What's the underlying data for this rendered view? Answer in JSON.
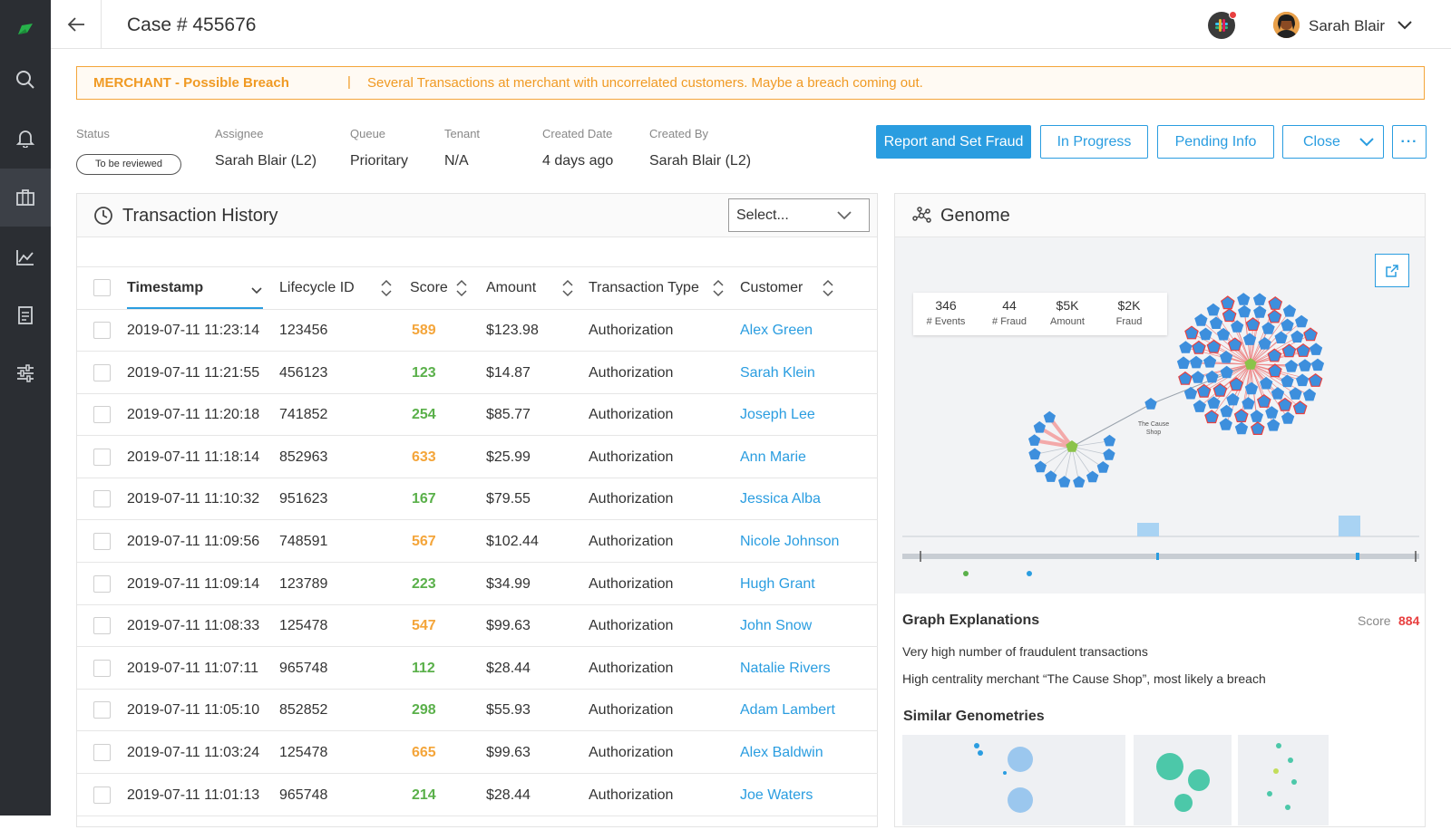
{
  "header": {
    "case_title": "Case # 455676",
    "user_name": "Sarah Blair"
  },
  "alert": {
    "title": "MERCHANT - Possible Breach",
    "separator": "|",
    "message": "Several Transactions at merchant with uncorrelated customers. Maybe a breach coming out."
  },
  "meta": {
    "status_label": "Status",
    "status_value": "To be reviewed",
    "assignee_label": "Assignee",
    "assignee_value": "Sarah Blair (L2)",
    "queue_label": "Queue",
    "queue_value": "Prioritary",
    "tenant_label": "Tenant",
    "tenant_value": "N/A",
    "created_date_label": "Created Date",
    "created_date_value": "4 days ago",
    "created_by_label": "Created By",
    "created_by_value": "Sarah Blair (L2)"
  },
  "actions": {
    "report": "Report and Set Fraud",
    "in_progress": "In Progress",
    "pending": "Pending Info",
    "close": "Close",
    "more": "···"
  },
  "transactions": {
    "title": "Transaction History",
    "select_placeholder": "Select...",
    "columns": [
      "Timestamp",
      "Lifecycle ID",
      "Score",
      "Amount",
      "Transaction Type",
      "Customer"
    ],
    "rows": [
      {
        "ts": "2019-07-11 11:23:14",
        "id": "123456",
        "score": "589",
        "level": "o",
        "amount": "$123.98",
        "type": "Authorization",
        "customer": "Alex Green"
      },
      {
        "ts": "2019-07-11 11:21:55",
        "id": "456123",
        "score": "123",
        "level": "g",
        "amount": "$14.87",
        "type": "Authorization",
        "customer": "Sarah Klein"
      },
      {
        "ts": "2019-07-11 11:20:18",
        "id": "741852",
        "score": "254",
        "level": "g",
        "amount": "$85.77",
        "type": "Authorization",
        "customer": "Joseph Lee"
      },
      {
        "ts": "2019-07-11 11:18:14",
        "id": "852963",
        "score": "633",
        "level": "o",
        "amount": "$25.99",
        "type": "Authorization",
        "customer": "Ann Marie"
      },
      {
        "ts": "2019-07-11 11:10:32",
        "id": "951623",
        "score": "167",
        "level": "g",
        "amount": "$79.55",
        "type": "Authorization",
        "customer": "Jessica Alba"
      },
      {
        "ts": "2019-07-11 11:09:56",
        "id": "748591",
        "score": "567",
        "level": "o",
        "amount": "$102.44",
        "type": "Authorization",
        "customer": "Nicole Johnson"
      },
      {
        "ts": "2019-07-11 11:09:14",
        "id": "123789",
        "score": "223",
        "level": "g",
        "amount": "$34.99",
        "type": "Authorization",
        "customer": "Hugh Grant"
      },
      {
        "ts": "2019-07-11 11:08:33",
        "id": "125478",
        "score": "547",
        "level": "o",
        "amount": "$99.63",
        "type": "Authorization",
        "customer": "John Snow"
      },
      {
        "ts": "2019-07-11 11:07:11",
        "id": "965748",
        "score": "112",
        "level": "g",
        "amount": "$28.44",
        "type": "Authorization",
        "customer": "Natalie Rivers"
      },
      {
        "ts": "2019-07-11 11:05:10",
        "id": "852852",
        "score": "298",
        "level": "g",
        "amount": "$55.93",
        "type": "Authorization",
        "customer": "Adam Lambert"
      },
      {
        "ts": "2019-07-11 11:03:24",
        "id": "125478",
        "score": "665",
        "level": "o",
        "amount": "$99.63",
        "type": "Authorization",
        "customer": "Alex Baldwin"
      },
      {
        "ts": "2019-07-11 11:01:13",
        "id": "965748",
        "score": "214",
        "level": "g",
        "amount": "$28.44",
        "type": "Authorization",
        "customer": "Joe Waters"
      }
    ]
  },
  "genome": {
    "title": "Genome",
    "kpis": [
      {
        "value": "346",
        "label": "# Events"
      },
      {
        "value": "44",
        "label": "# Fraud"
      },
      {
        "value": "$5K",
        "label": "Amount"
      },
      {
        "value": "$2K",
        "label": "Fraud"
      }
    ],
    "graph_node_label": "The Cause Shop",
    "explanations_title": "Graph Explanations",
    "score_label": "Score",
    "score_value": "884",
    "explanations": [
      "Very high number of fraudulent transactions",
      "High centrality merchant “The Cause Shop”, most likely a breach"
    ],
    "similar_title": "Similar Genometries"
  },
  "colors": {
    "accent": "#2a9de0",
    "warning": "#f09a23",
    "score_high": "#f4a53a",
    "score_low": "#5ab04a",
    "sidebar_bg": "#2b2e33",
    "danger": "#e84040"
  }
}
